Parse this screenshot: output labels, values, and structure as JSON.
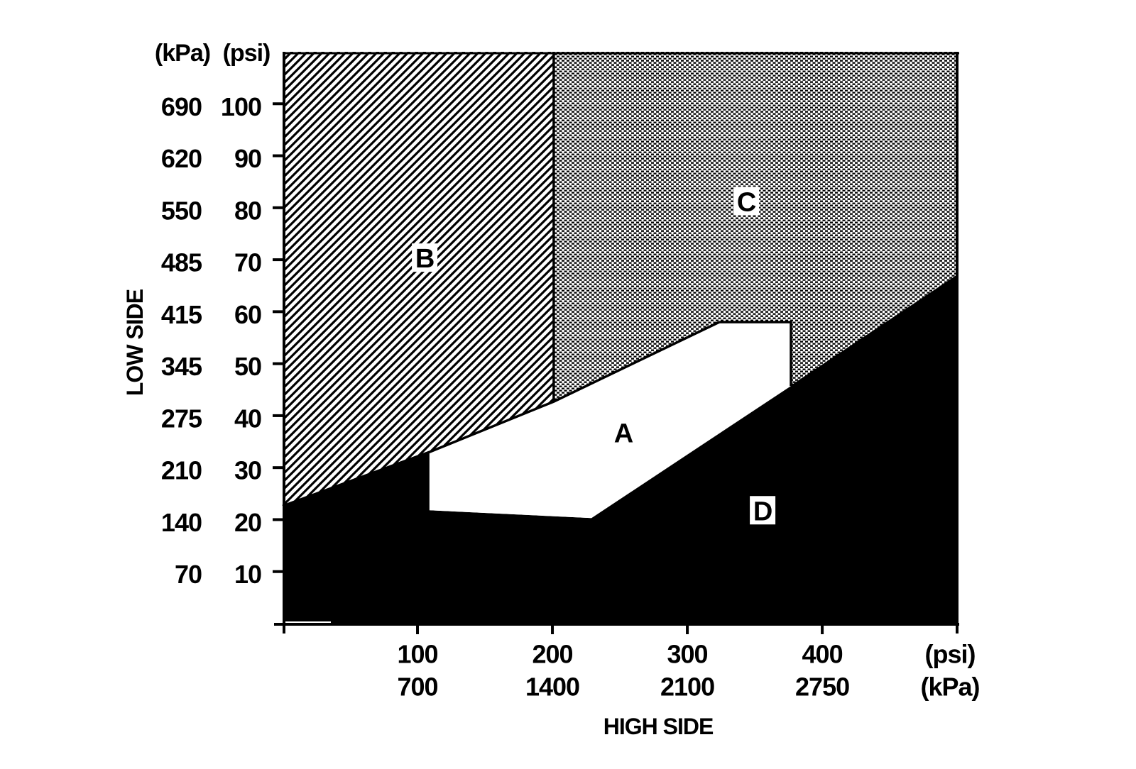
{
  "figure": {
    "background": "#ffffff",
    "ink": "#000000"
  },
  "chart_data": {
    "type": "area",
    "title": "",
    "x_axis": {
      "title": "HIGH SIDE",
      "unit_labels": [
        "(psi)",
        "(kPa)"
      ],
      "range_psi": [
        0,
        501
      ],
      "ticks": [
        {
          "psi": "100",
          "kpa": "700"
        },
        {
          "psi": "200",
          "kpa": "1400"
        },
        {
          "psi": "300",
          "kpa": "2100"
        },
        {
          "psi": "400",
          "kpa": "2750"
        }
      ]
    },
    "y_axis": {
      "title": "LOW SIDE",
      "unit_headers": [
        "(kPa)",
        "(psi)"
      ],
      "range_psi": [
        0,
        110
      ],
      "ticks": [
        {
          "kpa": "690",
          "psi": "100"
        },
        {
          "kpa": "620",
          "psi": "90"
        },
        {
          "kpa": "550",
          "psi": "80"
        },
        {
          "kpa": "485",
          "psi": "70"
        },
        {
          "kpa": "415",
          "psi": "60"
        },
        {
          "kpa": "345",
          "psi": "50"
        },
        {
          "kpa": "275",
          "psi": "40"
        },
        {
          "kpa": "210",
          "psi": "30"
        },
        {
          "kpa": "140",
          "psi": "20"
        },
        {
          "kpa": "70",
          "psi": "10"
        }
      ]
    },
    "regions": [
      {
        "id": "B",
        "label": "B",
        "fill": "hatch",
        "boxed": true,
        "label_pos": {
          "x": 105.3,
          "y": 70.4
        },
        "points": [
          [
            0,
            110
          ],
          [
            201,
            110
          ],
          [
            201,
            42.7
          ],
          [
            108.9,
            33
          ],
          [
            0,
            22.6
          ]
        ]
      },
      {
        "id": "C",
        "label": "C",
        "fill": "stipple",
        "boxed": true,
        "label_pos": {
          "x": 343.7,
          "y": 81.3
        },
        "points": [
          [
            201,
            110
          ],
          [
            501,
            110
          ],
          [
            501,
            67.3
          ],
          [
            376.8,
            45.7
          ],
          [
            376.8,
            58
          ],
          [
            323.7,
            58
          ],
          [
            201,
            42.7
          ]
        ]
      },
      {
        "id": "D",
        "label": "D",
        "fill": "black",
        "boxed": true,
        "label_pos": {
          "x": 355.8,
          "y": 21.8
        },
        "points": [
          [
            0,
            22.6
          ],
          [
            108.9,
            33
          ],
          [
            108.9,
            21.8
          ],
          [
            228.9,
            20.3
          ],
          [
            501,
            67.3
          ],
          [
            501,
            0
          ],
          [
            0,
            0
          ]
        ]
      },
      {
        "id": "A",
        "label": "A",
        "fill": "white",
        "boxed": false,
        "label_pos": {
          "x": 252.6,
          "y": 36.8
        },
        "points": [
          [
            108.9,
            33
          ],
          [
            201,
            42.7
          ],
          [
            323.7,
            58
          ],
          [
            376.8,
            58
          ],
          [
            376.8,
            45.7
          ],
          [
            228.9,
            20.3
          ],
          [
            108.9,
            21.8
          ]
        ]
      }
    ],
    "boundaries": [
      {
        "name": "b-lower-diagonal",
        "points": [
          [
            0,
            22.6
          ],
          [
            108.9,
            33
          ],
          [
            201,
            42.7
          ],
          [
            323.7,
            58
          ]
        ]
      },
      {
        "name": "a-top-right-outline",
        "points": [
          [
            323.7,
            58
          ],
          [
            376.8,
            58
          ],
          [
            376.8,
            45.7
          ]
        ]
      },
      {
        "name": "b-c-divider",
        "points": [
          [
            201,
            110
          ],
          [
            201,
            42.7
          ]
        ]
      }
    ]
  }
}
